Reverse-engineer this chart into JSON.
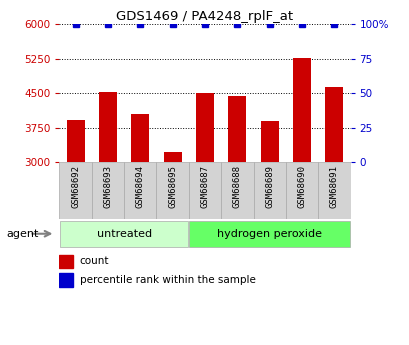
{
  "title": "GDS1469 / PA4248_rplF_at",
  "samples": [
    "GSM68692",
    "GSM68693",
    "GSM68694",
    "GSM68695",
    "GSM68687",
    "GSM68688",
    "GSM68689",
    "GSM68690",
    "GSM68691"
  ],
  "counts": [
    3920,
    4520,
    4050,
    3230,
    4500,
    4430,
    3900,
    5270,
    4630
  ],
  "ymin": 3000,
  "ymax": 6000,
  "yticks_left": [
    3000,
    3750,
    4500,
    5250,
    6000
  ],
  "yticks_right": [
    0,
    25,
    50,
    75,
    100
  ],
  "bar_color": "#cc0000",
  "dot_color": "#0000cc",
  "n_untreated": 4,
  "n_hydrogen": 5,
  "untreated_label": "untreated",
  "hydrogen_label": "hydrogen peroxide",
  "agent_label": "agent",
  "legend_count": "count",
  "legend_percentile": "percentile rank within the sample",
  "untreated_color": "#ccffcc",
  "hydrogen_color": "#66ff66",
  "label_bg_color": "#d3d3d3",
  "label_border_color": "#aaaaaa"
}
